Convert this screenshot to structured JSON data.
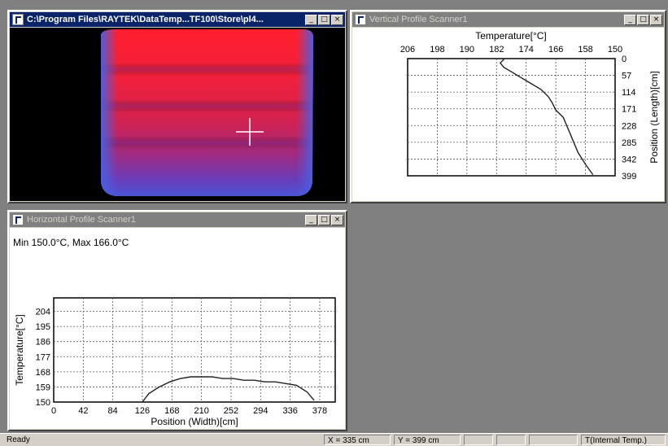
{
  "thermal_window": {
    "title": "C:\\Program Files\\RAYTEK\\DataTemp...TF100\\Store\\pl4..."
  },
  "vertical_window": {
    "title": "Vertical Profile Scanner1",
    "chart_data": {
      "type": "line",
      "title": "",
      "xlabel": "Temperature[°C]",
      "ylabel": "Position (Length)[cm]",
      "x_ticks": [
        "206",
        "198",
        "190",
        "182",
        "174",
        "166",
        "158",
        "150"
      ],
      "y_ticks": [
        "0",
        "57",
        "114",
        "171",
        "228",
        "285",
        "342",
        "399"
      ],
      "xlim": [
        206,
        150
      ],
      "ylim": [
        0,
        399
      ],
      "x": [
        180,
        181,
        180,
        178,
        176,
        174,
        172,
        170,
        168,
        167,
        166,
        164,
        163,
        162,
        161,
        160,
        158,
        156
      ],
      "y": [
        2,
        15,
        30,
        45,
        60,
        75,
        90,
        105,
        130,
        150,
        175,
        200,
        230,
        260,
        290,
        320,
        360,
        395
      ]
    }
  },
  "horizontal_window": {
    "title": "Horizontal Profile Scanner1",
    "minmax_text": "Min 150.0°C, Max 166.0°C",
    "chart_data": {
      "type": "line",
      "title": "",
      "xlabel": "Position (Width)[cm]",
      "ylabel": "Temperature[°C]",
      "x_ticks": [
        "0",
        "42",
        "84",
        "126",
        "168",
        "210",
        "252",
        "294",
        "336",
        "378"
      ],
      "y_ticks": [
        "150",
        "159",
        "168",
        "177",
        "186",
        "195",
        "204"
      ],
      "xlim": [
        0,
        400
      ],
      "ylim": [
        150,
        212
      ],
      "x": [
        126,
        135,
        150,
        165,
        180,
        195,
        210,
        225,
        240,
        255,
        270,
        285,
        300,
        315,
        330,
        345,
        360,
        370
      ],
      "y": [
        150,
        155,
        159,
        162,
        164,
        165,
        165,
        165,
        164,
        164,
        163,
        163,
        162,
        162,
        161,
        160,
        156,
        151
      ]
    }
  },
  "statusbar": {
    "ready": "Ready",
    "x_readout": "X = 335 cm",
    "y_readout": "Y = 399 cm",
    "mode": "T(Internal Temp.)"
  }
}
